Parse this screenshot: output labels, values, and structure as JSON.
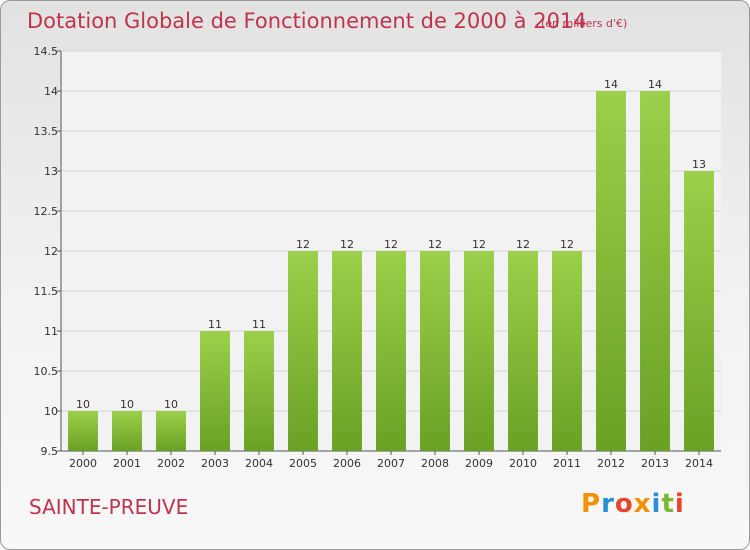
{
  "header": {
    "title": "Dotation Globale de Fonctionnement de 2000 à 2014",
    "subtitle": "(en milliers d'€)"
  },
  "footer": {
    "commune": "SAINTE-PREUVE",
    "logo_text": "Proxiti"
  },
  "colors": {
    "title": "#c0334d",
    "bar_light": "#9ccf4a",
    "bar_dark": "#6aa024",
    "logo": [
      "#f39200",
      "#2b8fd8",
      "#e8452c",
      "#f39200",
      "#2b8fd8",
      "#7ab834",
      "#e8452c"
    ]
  },
  "chart_data": {
    "type": "bar",
    "title": "Dotation Globale de Fonctionnement de 2000 à 2014",
    "subtitle": "(en milliers d'€)",
    "categories": [
      "2000",
      "2001",
      "2002",
      "2003",
      "2004",
      "2005",
      "2006",
      "2007",
      "2008",
      "2009",
      "2010",
      "2011",
      "2012",
      "2013",
      "2014"
    ],
    "values": [
      10,
      10,
      10,
      11,
      11,
      12,
      12,
      12,
      12,
      12,
      12,
      12,
      14,
      14,
      13
    ],
    "value_labels": [
      "10",
      "10",
      "10",
      "11",
      "11",
      "12",
      "12",
      "12",
      "12",
      "12",
      "12",
      "12",
      "14",
      "14",
      "13"
    ],
    "ylim": [
      9.5,
      14.5
    ],
    "yticks": [
      9.5,
      10,
      10.5,
      11,
      11.5,
      12,
      12.5,
      13,
      13.5,
      14,
      14.5
    ],
    "ytick_labels": [
      "9.5",
      "10",
      "10.5",
      "11",
      "11.5",
      "12",
      "12.5",
      "13",
      "13.5",
      "14",
      "14.5"
    ],
    "grid": true,
    "xlabel": "",
    "ylabel": ""
  }
}
